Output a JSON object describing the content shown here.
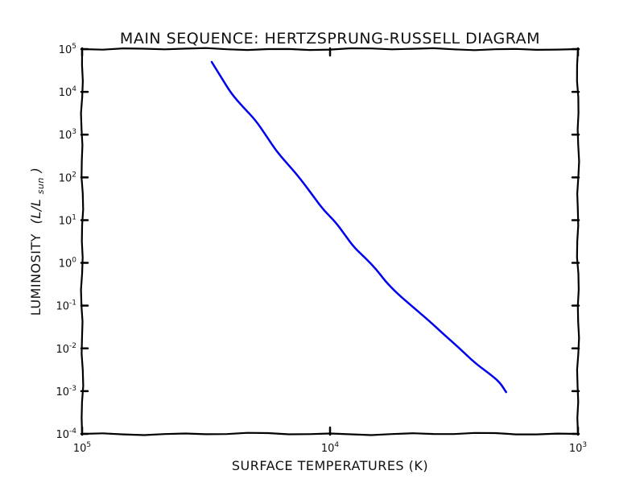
{
  "chart_data": {
    "type": "line",
    "title": "MAIN SEQUENCE: HERTZSPRUNG-RUSSELL DIAGRAM",
    "xlabel": "SURFACE TEMPERATURES (K)",
    "ylabel": "LUMINOSITY",
    "ylabel_math": "(L/L",
    "ylabel_math_sub": "sun",
    "ylabel_math_close": ")",
    "x_scale": "log",
    "x_reversed": true,
    "y_scale": "log",
    "xlim": [
      100000,
      1000
    ],
    "ylim": [
      0.0001,
      100000
    ],
    "x_ticks": [
      {
        "base": "10",
        "exp": "5",
        "value": 100000
      },
      {
        "base": "10",
        "exp": "4",
        "value": 10000
      },
      {
        "base": "10",
        "exp": "3",
        "value": 1000
      }
    ],
    "y_ticks": [
      {
        "base": "10",
        "exp": "5",
        "value": 100000
      },
      {
        "base": "10",
        "exp": "4",
        "value": 10000
      },
      {
        "base": "10",
        "exp": "3",
        "value": 1000
      },
      {
        "base": "10",
        "exp": "2",
        "value": 100
      },
      {
        "base": "10",
        "exp": "1",
        "value": 10
      },
      {
        "base": "10",
        "exp": "0",
        "value": 1
      },
      {
        "base": "10",
        "exp": "-1",
        "value": 0.1
      },
      {
        "base": "10",
        "exp": "-2",
        "value": 0.01
      },
      {
        "base": "10",
        "exp": "-3",
        "value": 0.001
      },
      {
        "base": "10",
        "exp": "-4",
        "value": 0.0001
      }
    ],
    "grid": false,
    "series": [
      {
        "color": "#0000ee",
        "points": [
          {
            "x": 30000,
            "y": 50000
          },
          {
            "x": 27500,
            "y": 22000
          },
          {
            "x": 25000,
            "y": 9000
          },
          {
            "x": 22500,
            "y": 4500
          },
          {
            "x": 20000,
            "y": 2200
          },
          {
            "x": 18000,
            "y": 900
          },
          {
            "x": 16500,
            "y": 420
          },
          {
            "x": 15000,
            "y": 220
          },
          {
            "x": 13500,
            "y": 110
          },
          {
            "x": 12000,
            "y": 45
          },
          {
            "x": 10700,
            "y": 18
          },
          {
            "x": 9500,
            "y": 9
          },
          {
            "x": 8700,
            "y": 4.5
          },
          {
            "x": 8000,
            "y": 2.3
          },
          {
            "x": 7200,
            "y": 1.3
          },
          {
            "x": 6500,
            "y": 0.7
          },
          {
            "x": 6000,
            "y": 0.38
          },
          {
            "x": 5400,
            "y": 0.2
          },
          {
            "x": 4700,
            "y": 0.1
          },
          {
            "x": 4000,
            "y": 0.045
          },
          {
            "x": 3500,
            "y": 0.022
          },
          {
            "x": 3000,
            "y": 0.01
          },
          {
            "x": 2600,
            "y": 0.0045
          },
          {
            "x": 2200,
            "y": 0.0022
          },
          {
            "x": 2050,
            "y": 0.0015
          },
          {
            "x": 1950,
            "y": 0.00095
          }
        ]
      }
    ]
  }
}
